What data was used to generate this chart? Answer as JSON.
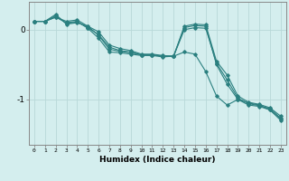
{
  "xlabel": "Humidex (Indice chaleur)",
  "bg_color": "#d4eeee",
  "grid_color": "#b8d8d8",
  "line_color": "#2a7f7f",
  "xlim": [
    -0.5,
    23.5
  ],
  "ylim": [
    -1.65,
    0.4
  ],
  "yticks": [
    0,
    -1
  ],
  "xticks": [
    0,
    1,
    2,
    3,
    4,
    5,
    6,
    7,
    8,
    9,
    10,
    11,
    12,
    13,
    14,
    15,
    16,
    17,
    18,
    19,
    20,
    21,
    22,
    23
  ],
  "line1": [
    0.12,
    0.12,
    0.22,
    0.08,
    0.1,
    0.05,
    -0.03,
    -0.22,
    -0.27,
    -0.3,
    -0.35,
    -0.35,
    -0.37,
    -0.38,
    -0.32,
    -0.35,
    -0.6,
    -0.95,
    -1.08,
    -1.0,
    -1.05,
    -1.08,
    -1.15,
    -1.3
  ],
  "line2": [
    0.12,
    0.12,
    0.18,
    0.1,
    0.12,
    0.02,
    -0.12,
    -0.32,
    -0.33,
    -0.35,
    -0.37,
    -0.37,
    -0.39,
    -0.38,
    0.03,
    0.06,
    0.05,
    -0.5,
    -0.78,
    -1.0,
    -1.08,
    -1.1,
    -1.15,
    -1.28
  ],
  "line3": [
    0.12,
    0.12,
    0.18,
    0.12,
    0.14,
    0.05,
    -0.08,
    -0.28,
    -0.31,
    -0.33,
    -0.36,
    -0.36,
    -0.38,
    -0.38,
    0.05,
    0.08,
    0.07,
    -0.45,
    -0.65,
    -0.95,
    -1.04,
    -1.07,
    -1.12,
    -1.24
  ],
  "line4": [
    0.12,
    0.12,
    0.2,
    0.09,
    0.11,
    0.03,
    -0.07,
    -0.25,
    -0.3,
    -0.32,
    -0.36,
    -0.36,
    -0.38,
    -0.38,
    0.0,
    0.03,
    0.02,
    -0.48,
    -0.72,
    -0.98,
    -1.06,
    -1.09,
    -1.13,
    -1.27
  ]
}
